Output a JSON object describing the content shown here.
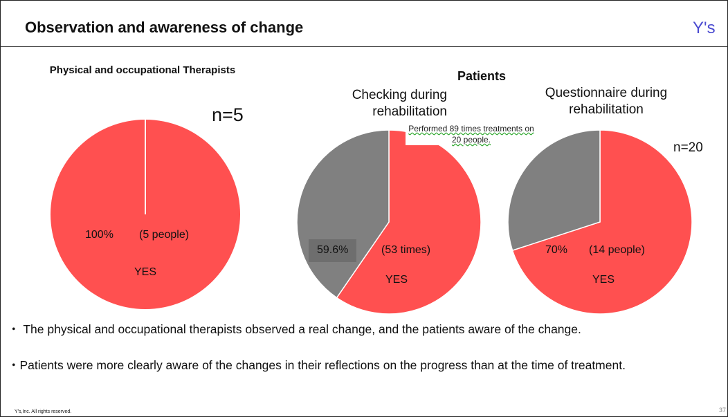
{
  "header": {
    "title": "Observation and awareness of change",
    "logo": "Y's"
  },
  "group_label": "Patients",
  "chart_data": [
    {
      "type": "pie",
      "title": "Physical and occupational Therapists",
      "annotation": "n=5",
      "categories": [
        "YES"
      ],
      "values": [
        100
      ],
      "value_labels": [
        "100%"
      ],
      "counts": [
        "(5 people)"
      ],
      "colors": [
        "#ff5050"
      ]
    },
    {
      "type": "pie",
      "title": "Checking during rehabilitation",
      "note": "Performed 89 times treatments on 20 people.",
      "categories": [
        "YES",
        null
      ],
      "values": [
        59.6,
        40.4
      ],
      "value_labels": [
        "59.6%",
        null
      ],
      "counts": [
        "(53 times)",
        null
      ],
      "colors": [
        "#ff5050",
        "#808080"
      ]
    },
    {
      "type": "pie",
      "title": "Questionnaire during rehabilitation",
      "annotation": "n=20",
      "categories": [
        "YES",
        null
      ],
      "values": [
        70,
        30
      ],
      "value_labels": [
        "70%",
        null
      ],
      "counts": [
        "(14 people)",
        null
      ],
      "colors": [
        "#ff5050",
        "#808080"
      ]
    }
  ],
  "bullets": [
    "・ The physical and occupational therapists observed a real change, and the patients aware of the change.",
    "・Patients were more clearly aware of the changes in their reflections on the progress than at the time of treatment."
  ],
  "footer": "Y's,Inc. All rights reserved.",
  "page_number": "37"
}
